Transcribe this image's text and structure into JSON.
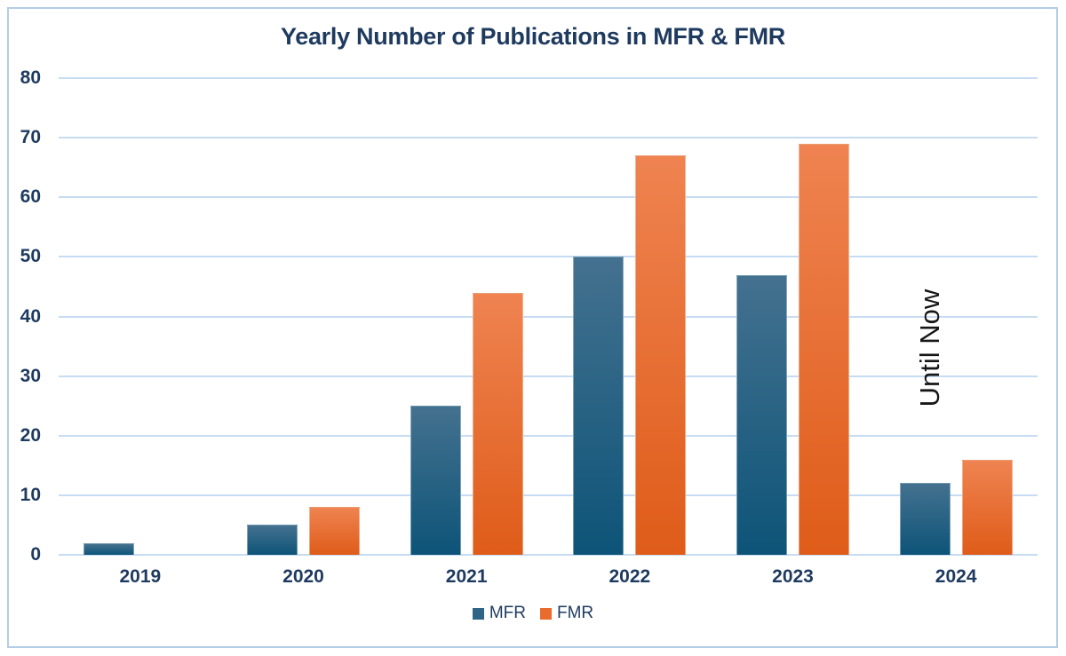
{
  "chart": {
    "title": "Yearly Number of Publications in MFR & FMR",
    "annotation": {
      "text": "Until Now",
      "rotation_deg": -90
    }
  },
  "chart_data": {
    "type": "bar",
    "title": "Yearly Number of Publications in MFR & FMR",
    "categories": [
      "2019",
      "2020",
      "2021",
      "2022",
      "2023",
      "2024"
    ],
    "series": [
      {
        "name": "MFR",
        "values": [
          2,
          5,
          25,
          50,
          47,
          12
        ],
        "color_top": "#44718f",
        "color_bottom": "#0d5478",
        "legend_color": "#2e6486"
      },
      {
        "name": "FMR",
        "values": [
          0,
          8,
          44,
          67,
          69,
          16
        ],
        "color_top": "#ef8351",
        "color_bottom": "#df5c19",
        "legend_color": "#e96b2d"
      }
    ],
    "xlabel": "",
    "ylabel": "",
    "ylim": [
      0,
      80
    ],
    "ytick_step": 10,
    "ytick_labels": [
      "0",
      "10",
      "20",
      "30",
      "40",
      "50",
      "60",
      "70",
      "80"
    ],
    "grid": true,
    "legend_position": "bottom",
    "annotations": [
      {
        "text": "Until Now",
        "near_category": "2024",
        "rotation": -90
      }
    ]
  },
  "colors": {
    "title_text": "#1e3a5f",
    "axis_text": "#1e3a5f",
    "gridline": "#c6dcf2",
    "frame_border": "#b3cde8",
    "background": "#ffffff",
    "annotation_text": "#161616"
  }
}
